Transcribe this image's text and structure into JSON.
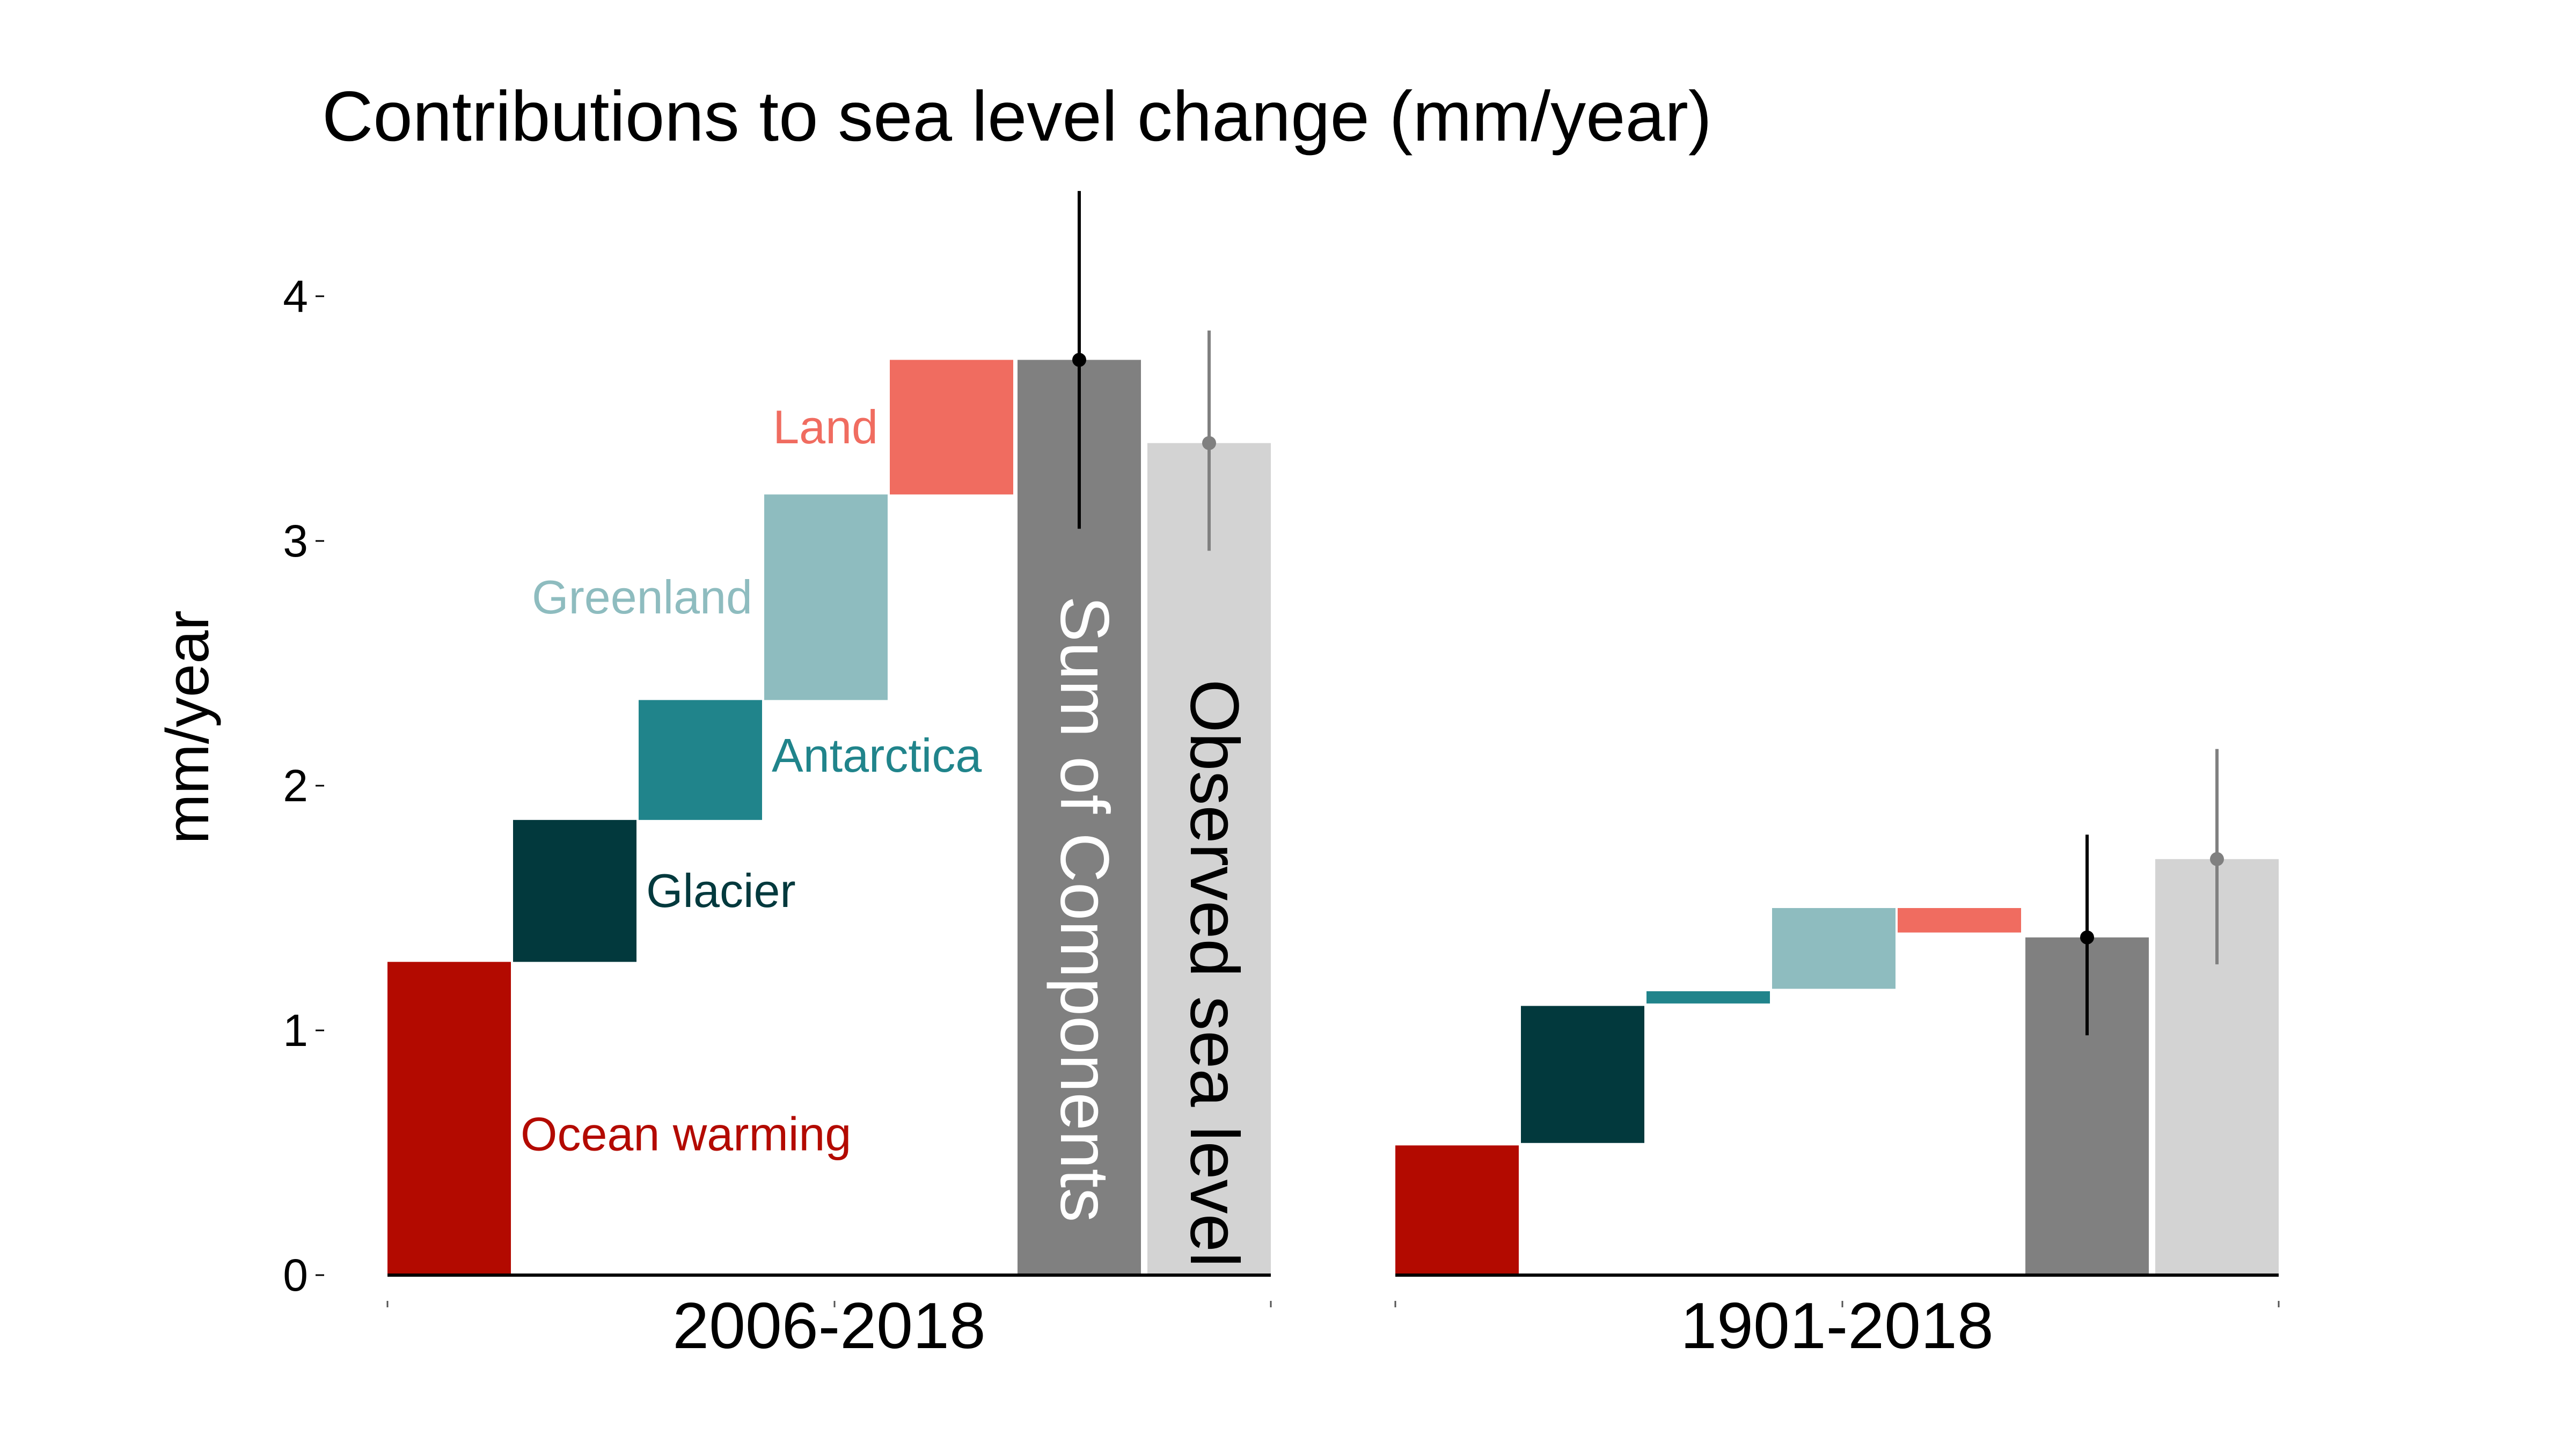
{
  "chart_data": {
    "type": "bar",
    "subtype": "waterfall",
    "title": "Contributions to sea level change (mm/year)",
    "ylabel": "mm/year",
    "xlabel": "",
    "ylim": [
      0,
      4.4
    ],
    "yticks": [
      0,
      1,
      2,
      3,
      4
    ],
    "grid": false,
    "colors": {
      "ocean_warming": "#b30a00",
      "glacier": "#02393d",
      "antarctica": "#20848b",
      "greenland": "#8ebcbf",
      "land": "#f06c60",
      "sum": "#808080",
      "observed": "#d3d3d3",
      "sum_error": "#000000",
      "observed_error": "#808080"
    },
    "periods": [
      {
        "name": "2006-2018",
        "components": [
          {
            "key": "ocean_warming",
            "label": "Ocean warming",
            "start": 0.0,
            "end": 1.28
          },
          {
            "key": "glacier",
            "label": "Glacier",
            "start": 1.28,
            "end": 1.86
          },
          {
            "key": "antarctica",
            "label": "Antarctica",
            "start": 1.86,
            "end": 2.35
          },
          {
            "key": "greenland",
            "label": "Greenland",
            "start": 2.35,
            "end": 3.19
          },
          {
            "key": "land",
            "label": "Land",
            "start": 3.19,
            "end": 3.74
          }
        ],
        "sum": {
          "label": "Sum of Components",
          "value": 3.74,
          "error_low": 3.05,
          "error_high": 4.43
        },
        "observed": {
          "label": "Observed sea level",
          "value": 3.4,
          "error_low": 2.96,
          "error_high": 3.86
        }
      },
      {
        "name": "1901-2018",
        "components": [
          {
            "key": "ocean_warming",
            "label": "",
            "start": 0.0,
            "end": 0.53
          },
          {
            "key": "glacier",
            "label": "",
            "start": 0.54,
            "end": 1.1
          },
          {
            "key": "antarctica",
            "label": "",
            "start": 1.11,
            "end": 1.16
          },
          {
            "key": "greenland",
            "label": "",
            "start": 1.17,
            "end": 1.5
          },
          {
            "key": "land",
            "label": "",
            "start": 1.4,
            "end": 1.5
          }
        ],
        "sum": {
          "label": "",
          "value": 1.38,
          "error_low": 0.98,
          "error_high": 1.8
        },
        "observed": {
          "label": "",
          "value": 1.7,
          "error_low": 1.27,
          "error_high": 2.15
        }
      }
    ]
  }
}
